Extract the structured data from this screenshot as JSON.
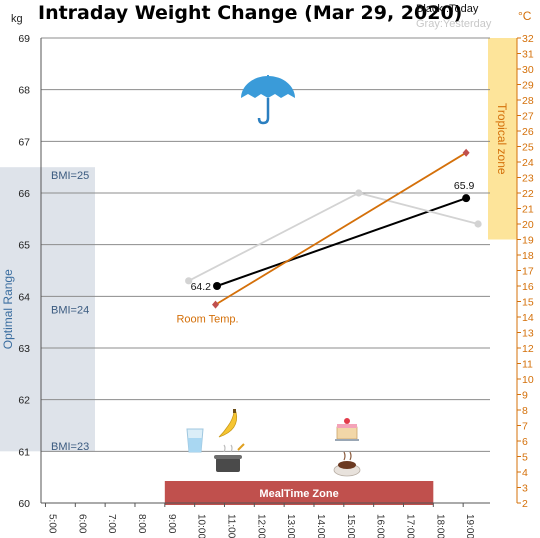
{
  "chart_data": {
    "type": "line",
    "title": "Intraday Weight Change (Mar 29, 2020)",
    "legend": {
      "today": "Black :Today",
      "yesterday": "Gray:Yesterday"
    },
    "y_left": {
      "unit": "kg",
      "range": [
        60,
        69
      ],
      "ticks": [
        60,
        61,
        62,
        63,
        64,
        65,
        66,
        67,
        68,
        69
      ]
    },
    "y_right": {
      "unit": "°C",
      "range": [
        2,
        32
      ],
      "ticks": [
        2,
        3,
        4,
        5,
        6,
        7,
        8,
        9,
        10,
        11,
        12,
        13,
        14,
        15,
        16,
        17,
        18,
        19,
        20,
        21,
        22,
        23,
        24,
        25,
        26,
        27,
        28,
        29,
        30,
        31,
        32
      ]
    },
    "x_axis": {
      "ticks": [
        5,
        6,
        7,
        8,
        9,
        10,
        11,
        12,
        13,
        14,
        15,
        16,
        17,
        18,
        19
      ],
      "tick_labels": [
        "5:00",
        "6:00",
        "7:00",
        "8:00",
        "9:00",
        "10:00",
        "11:00",
        "12:00",
        "13:00",
        "14:00",
        "15:00",
        "16:00",
        "17:00",
        "18:00",
        "19:00"
      ]
    },
    "series": [
      {
        "key": "today",
        "axis": "left",
        "color": "#000000",
        "points": [
          {
            "x": 10.75,
            "y": 64.2
          },
          {
            "x": 19.1,
            "y": 65.9
          }
        ],
        "labels": [
          "64.2",
          "65.9"
        ]
      },
      {
        "key": "yesterday",
        "axis": "left",
        "color": "#d3d3d3",
        "points": [
          {
            "x": 9.8,
            "y": 64.3
          },
          {
            "x": 15.5,
            "y": 66.0
          },
          {
            "x": 19.5,
            "y": 65.4
          }
        ]
      },
      {
        "name": "Room Temp.",
        "axis": "right",
        "color": "#d4700a",
        "points": [
          {
            "x": 10.7,
            "y": 14.8
          },
          {
            "x": 19.1,
            "y": 24.6
          }
        ]
      }
    ],
    "bands": {
      "optimal_range": {
        "label": "Optimal Range",
        "from": 61,
        "to": 66.5,
        "color": "#dee3ea"
      },
      "bmi_lines": [
        {
          "label": "BMI=25",
          "y": 66.35
        },
        {
          "label": "BMI=24",
          "y": 63.75
        },
        {
          "label": "BMI=23",
          "y": 61.1
        }
      ],
      "tropical_zone": {
        "label": "Tropical zone",
        "from_temp": 19,
        "to_temp": 32,
        "color": "#fde49a"
      },
      "meal_time_zone": {
        "label": "MealTime Zone",
        "from_x": 9,
        "to_x": 18,
        "color": "#c0504d"
      }
    },
    "icons": [
      "umbrella-icon",
      "water-glass-icon",
      "banana-icon",
      "cooking-pot-icon",
      "cake-icon",
      "coffee-cup-icon"
    ],
    "grid": true
  }
}
